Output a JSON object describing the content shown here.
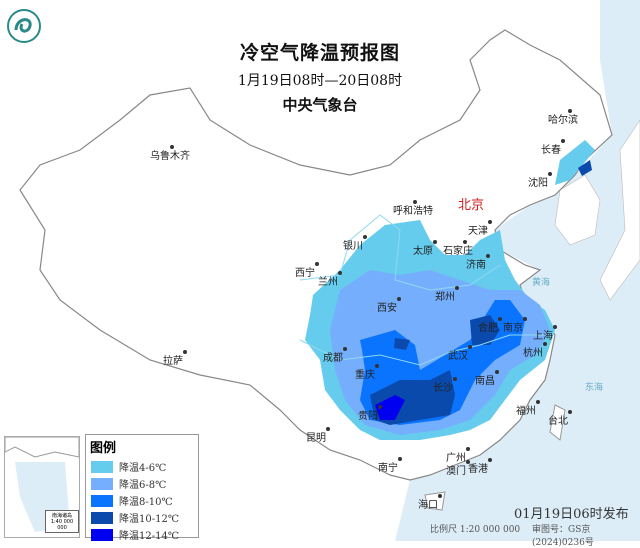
{
  "header": {
    "title": "冷空气降温预报图",
    "period": "1月19日08时—20日08时",
    "issuer": "中央气象台"
  },
  "legend": {
    "title": "图例",
    "items": [
      {
        "label": "降温4-6℃",
        "color": "#66ccee"
      },
      {
        "label": "降温6-8℃",
        "color": "#74aefc"
      },
      {
        "label": "降温8-10℃",
        "color": "#0a74ff"
      },
      {
        "label": "降温10-12℃",
        "color": "#0a4aac"
      },
      {
        "label": "降温12-14℃",
        "color": "#0000f0"
      }
    ]
  },
  "cities": {
    "capital": "北京",
    "list": [
      "哈尔滨",
      "长春",
      "沈阳",
      "乌鲁木齐",
      "呼和浩特",
      "天津",
      "银川",
      "太原",
      "石家庄",
      "西宁",
      "兰州",
      "济南",
      "郑州",
      "西安",
      "拉萨",
      "合肥",
      "南京",
      "上海",
      "成都",
      "武汉",
      "杭州",
      "重庆",
      "南昌",
      "长沙",
      "福州",
      "贵阳",
      "台北",
      "昆明",
      "广州",
      "南宁",
      "澳门",
      "香港",
      "海口"
    ]
  },
  "seas": [
    "黄海",
    "东海"
  ],
  "inset": {
    "label": "南海诸岛",
    "scale": "1:40 000 000"
  },
  "footer": {
    "published": "01月19日06时发布",
    "scale": "比例尺 1:20 000 000",
    "approval": "审图号：GS京(2024)0236号"
  },
  "colors": {
    "ocean": "#dcedf7",
    "land": "#ffffff",
    "border": "#999999",
    "river": "#7cc8e8"
  }
}
